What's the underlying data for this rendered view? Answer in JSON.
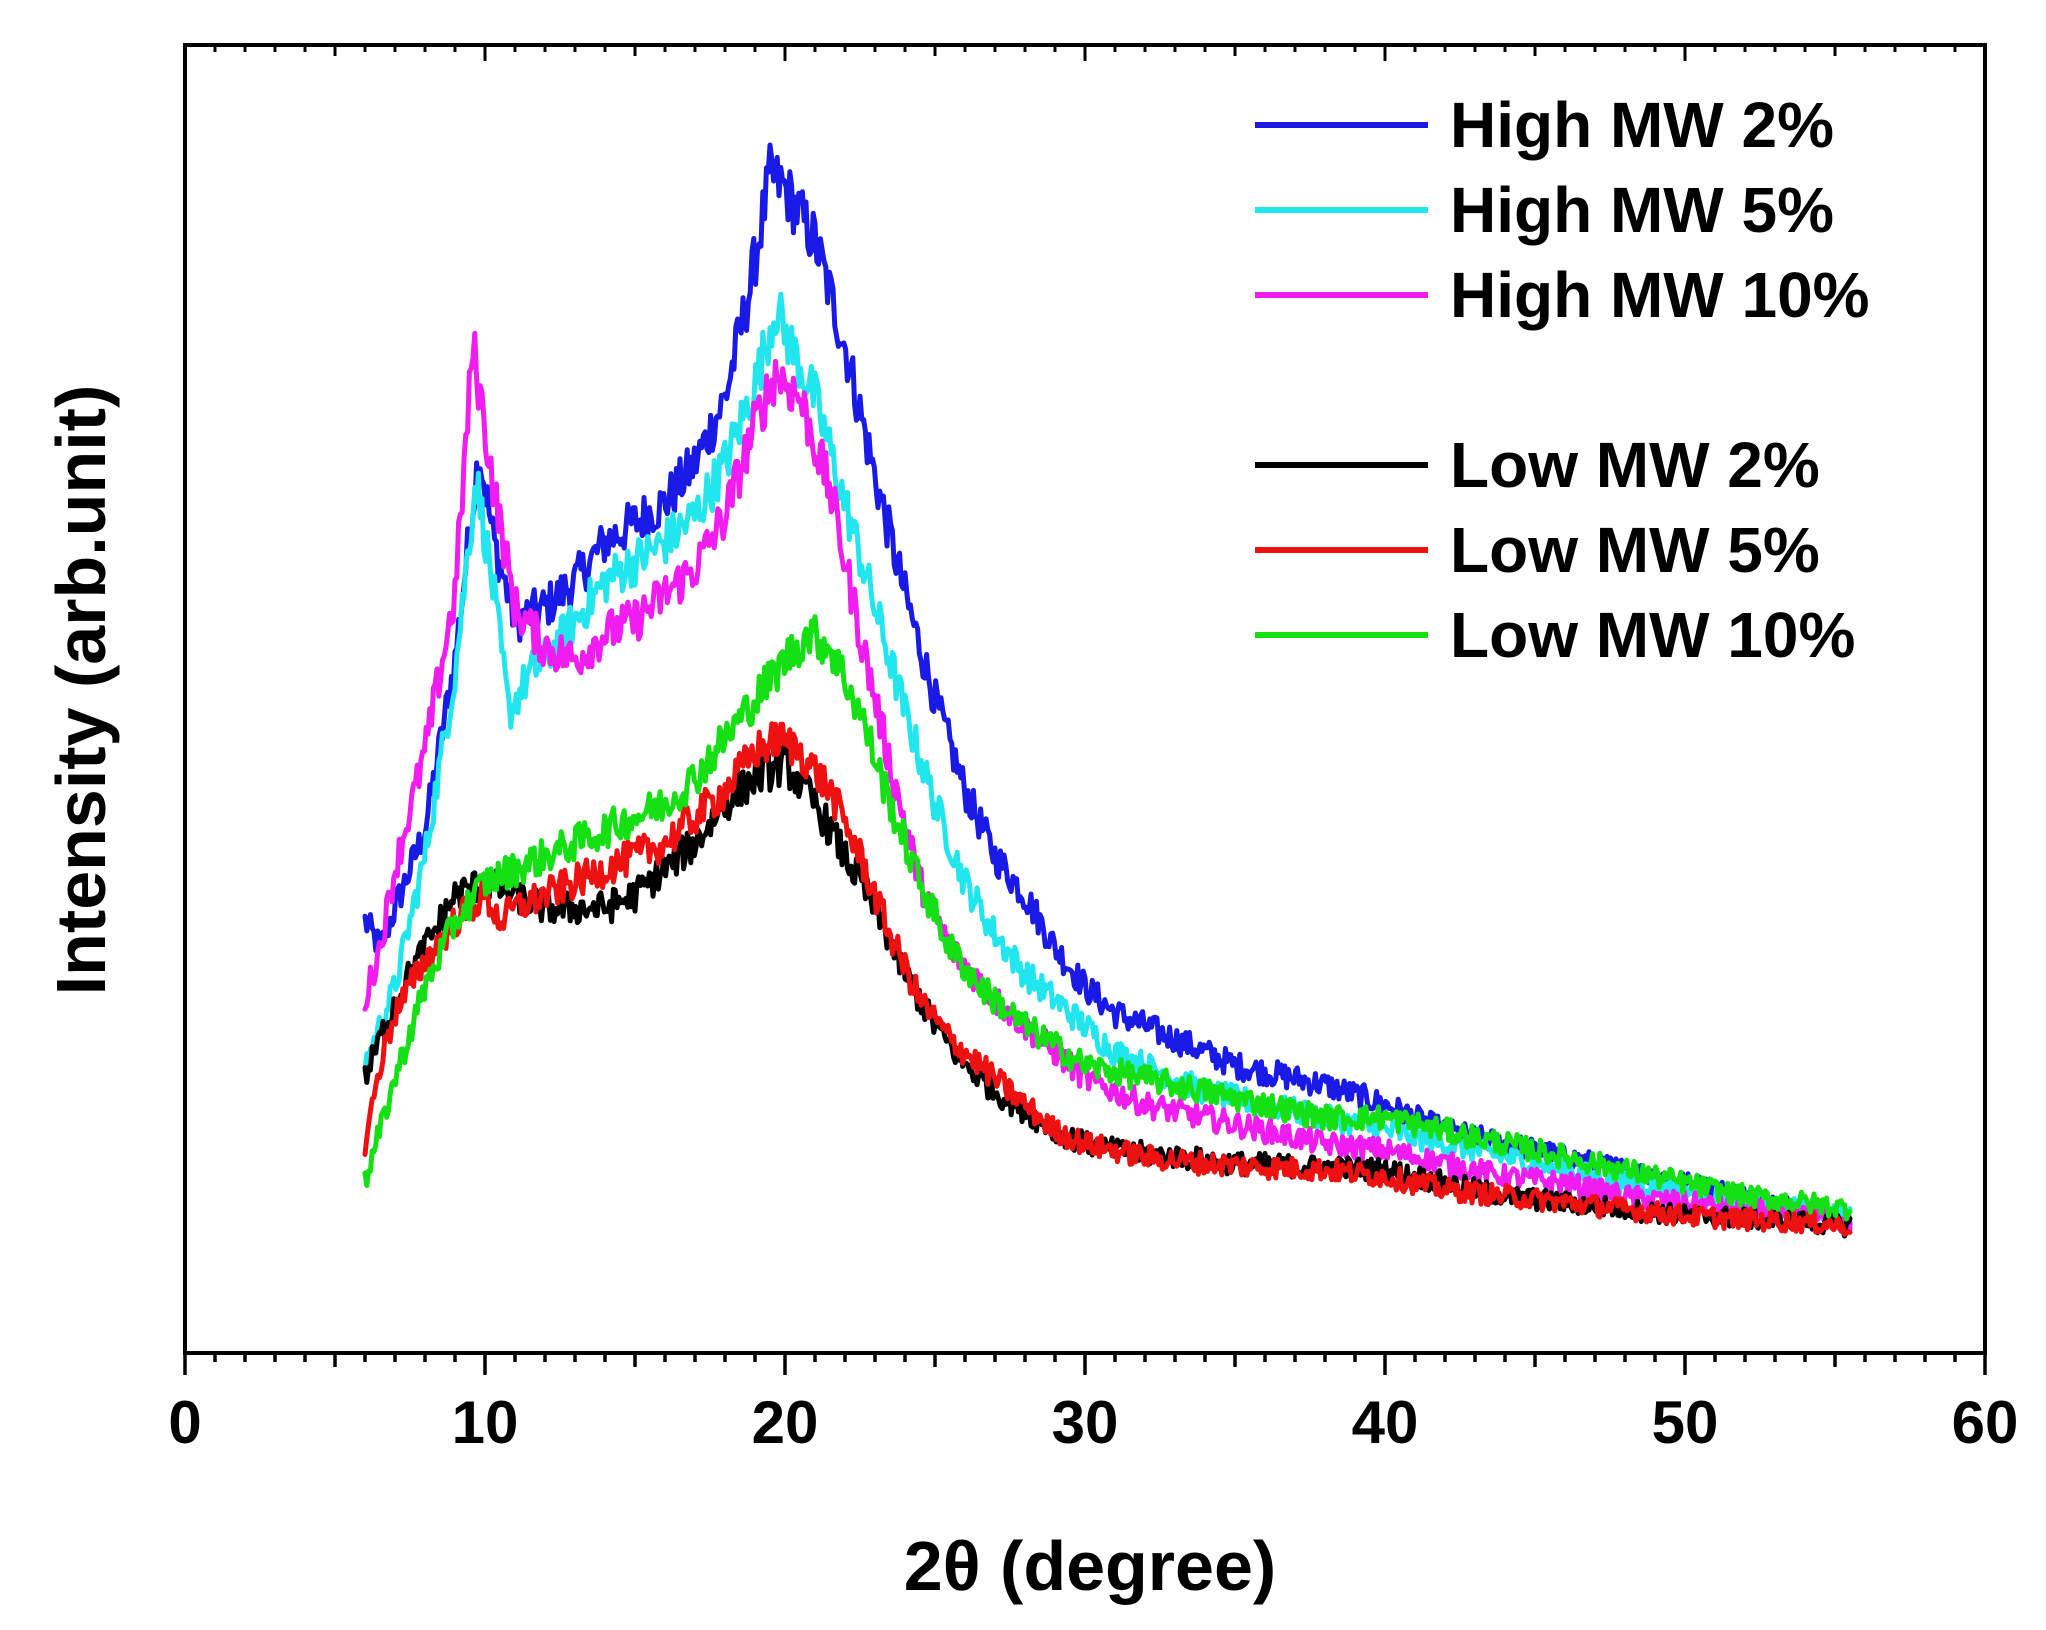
{
  "chart_data": {
    "type": "line",
    "title": "",
    "xlabel": "2θ (degree)",
    "ylabel": "Intensity (arb.unit)",
    "xlim": [
      0,
      60
    ],
    "ylim": [
      0,
      100
    ],
    "xticks": [
      0,
      10,
      20,
      30,
      40,
      50,
      60
    ],
    "xtick_labels": [
      "0",
      "10",
      "20",
      "30",
      "40",
      "50",
      "60"
    ],
    "y_tick_labels": "none",
    "grid": false,
    "legend_position": "top-right",
    "colors": {
      "High MW 2%": "#1a1ae6",
      "High MW 5%": "#22e6ee",
      "High MW 10%": "#f01cf0",
      "Low MW 2%": "#000000",
      "Low MW 5%": "#ee1111",
      "Low MW 10%": "#14e014"
    },
    "series": [
      {
        "name": "High MW 2%",
        "color": "#1a1ae6",
        "points": [
          [
            6,
            33
          ],
          [
            6.5,
            31
          ],
          [
            7,
            34
          ],
          [
            8,
            40
          ],
          [
            9,
            53
          ],
          [
            9.8,
            69
          ],
          [
            10.3,
            62
          ],
          [
            11,
            56
          ],
          [
            12,
            57
          ],
          [
            13,
            59
          ],
          [
            14,
            62
          ],
          [
            16,
            65
          ],
          [
            17,
            68
          ],
          [
            18,
            73
          ],
          [
            18.8,
            81
          ],
          [
            19.5,
            90
          ],
          [
            20,
            89
          ],
          [
            21,
            85
          ],
          [
            22,
            77
          ],
          [
            23,
            67
          ],
          [
            24,
            58
          ],
          [
            25,
            50
          ],
          [
            26,
            43
          ],
          [
            27,
            38
          ],
          [
            28,
            35
          ],
          [
            29,
            31
          ],
          [
            30,
            28
          ],
          [
            31,
            26
          ],
          [
            32,
            25
          ],
          [
            33,
            24
          ],
          [
            35,
            22
          ],
          [
            37,
            21
          ],
          [
            38,
            20.5
          ],
          [
            40,
            19
          ],
          [
            42,
            17
          ],
          [
            44,
            16
          ],
          [
            46,
            15
          ],
          [
            48,
            14
          ],
          [
            50,
            13
          ],
          [
            52,
            12
          ],
          [
            54,
            11
          ],
          [
            55.5,
            10
          ]
        ]
      },
      {
        "name": "High MW 5%",
        "color": "#22e6ee",
        "points": [
          [
            6,
            22
          ],
          [
            7,
            28
          ],
          [
            8,
            38
          ],
          [
            9,
            52
          ],
          [
            9.7,
            67
          ],
          [
            10.3,
            58
          ],
          [
            10.8,
            49
          ],
          [
            11.5,
            52
          ],
          [
            12,
            53
          ],
          [
            13,
            56
          ],
          [
            14,
            59
          ],
          [
            16,
            62
          ],
          [
            17,
            64
          ],
          [
            18,
            68
          ],
          [
            19,
            74
          ],
          [
            19.7,
            80
          ],
          [
            20,
            78
          ],
          [
            21,
            73
          ],
          [
            22,
            65
          ],
          [
            23,
            57
          ],
          [
            24,
            49
          ],
          [
            25,
            42
          ],
          [
            26,
            36
          ],
          [
            27,
            32
          ],
          [
            28,
            29
          ],
          [
            29,
            27
          ],
          [
            30,
            25
          ],
          [
            31,
            23
          ],
          [
            32,
            22
          ],
          [
            34,
            20
          ],
          [
            36,
            19
          ],
          [
            38,
            18
          ],
          [
            40,
            17
          ],
          [
            42,
            16
          ],
          [
            44,
            15
          ],
          [
            46,
            14
          ],
          [
            48,
            13
          ],
          [
            50,
            12.5
          ],
          [
            52,
            11.5
          ],
          [
            54,
            11
          ],
          [
            55.5,
            10.5
          ]
        ]
      },
      {
        "name": "High MW 10%",
        "color": "#f01cf0",
        "points": [
          [
            6,
            27
          ],
          [
            6.5,
            31
          ],
          [
            7,
            37
          ],
          [
            8,
            46
          ],
          [
            9,
            58
          ],
          [
            9.6,
            77
          ],
          [
            10.3,
            66
          ],
          [
            11,
            57
          ],
          [
            12,
            54
          ],
          [
            13,
            53
          ],
          [
            14,
            55
          ],
          [
            15,
            56
          ],
          [
            16,
            58
          ],
          [
            17,
            60
          ],
          [
            18,
            64
          ],
          [
            19,
            71
          ],
          [
            19.7,
            75
          ],
          [
            20.5,
            73
          ],
          [
            21.5,
            66
          ],
          [
            22.5,
            55
          ],
          [
            23.5,
            45
          ],
          [
            24.5,
            36
          ],
          [
            25.5,
            31
          ],
          [
            27,
            27
          ],
          [
            28,
            25
          ],
          [
            30,
            21
          ],
          [
            32,
            19
          ],
          [
            34,
            18
          ],
          [
            36,
            17
          ],
          [
            38,
            16
          ],
          [
            40,
            15.5
          ],
          [
            42,
            14.5
          ],
          [
            44,
            13.5
          ],
          [
            46,
            13
          ],
          [
            48,
            12
          ],
          [
            50,
            11.5
          ],
          [
            52,
            11
          ],
          [
            54,
            10.5
          ],
          [
            55.5,
            10
          ]
        ]
      },
      {
        "name": "Low MW 2%",
        "color": "#000000",
        "points": [
          [
            6,
            21
          ],
          [
            7,
            27
          ],
          [
            8,
            31
          ],
          [
            9,
            35
          ],
          [
            10,
            36
          ],
          [
            11,
            35
          ],
          [
            12,
            34
          ],
          [
            13,
            34
          ],
          [
            14,
            34
          ],
          [
            15,
            35
          ],
          [
            16,
            37
          ],
          [
            17,
            39
          ],
          [
            18,
            42
          ],
          [
            19,
            44
          ],
          [
            20,
            45
          ],
          [
            21,
            42
          ],
          [
            22,
            38
          ],
          [
            23,
            34
          ],
          [
            24,
            29
          ],
          [
            25,
            25
          ],
          [
            26,
            22
          ],
          [
            27,
            20
          ],
          [
            28,
            18.5
          ],
          [
            29,
            17
          ],
          [
            30,
            16
          ],
          [
            31,
            15.5
          ],
          [
            33,
            15
          ],
          [
            35,
            14.5
          ],
          [
            37,
            14.3
          ],
          [
            40,
            14
          ],
          [
            42,
            13
          ],
          [
            44,
            12
          ],
          [
            46,
            11.5
          ],
          [
            48,
            11
          ],
          [
            50,
            10.5
          ],
          [
            52,
            10.3
          ],
          [
            54,
            10
          ],
          [
            55.5,
            9.7
          ]
        ]
      },
      {
        "name": "Low MW 5%",
        "color": "#ee1111",
        "points": [
          [
            6,
            16
          ],
          [
            6.5,
            22
          ],
          [
            7,
            26
          ],
          [
            8,
            30
          ],
          [
            9,
            33
          ],
          [
            10,
            35
          ],
          [
            10.5,
            33
          ],
          [
            11,
            34
          ],
          [
            12,
            35
          ],
          [
            13,
            36
          ],
          [
            14,
            37
          ],
          [
            15,
            38
          ],
          [
            16,
            39
          ],
          [
            17,
            41
          ],
          [
            18,
            43
          ],
          [
            19,
            46
          ],
          [
            19.8,
            47
          ],
          [
            20.5,
            46
          ],
          [
            21.5,
            43
          ],
          [
            22.5,
            38
          ],
          [
            23.5,
            32
          ],
          [
            24.5,
            27
          ],
          [
            25.5,
            24
          ],
          [
            27,
            21
          ],
          [
            28,
            19
          ],
          [
            29,
            17
          ],
          [
            30,
            16
          ],
          [
            32,
            15
          ],
          [
            34,
            14.5
          ],
          [
            36,
            14.2
          ],
          [
            38,
            14
          ],
          [
            40,
            13.5
          ],
          [
            42,
            12.5
          ],
          [
            44,
            12
          ],
          [
            46,
            11.5
          ],
          [
            48,
            11
          ],
          [
            50,
            10.5
          ],
          [
            52,
            10.2
          ],
          [
            54,
            10
          ],
          [
            55.5,
            9.7
          ]
        ]
      },
      {
        "name": "Low MW 10%",
        "color": "#14e014",
        "points": [
          [
            6,
            13
          ],
          [
            7,
            21
          ],
          [
            8,
            28
          ],
          [
            9,
            33
          ],
          [
            10,
            36
          ],
          [
            11,
            37
          ],
          [
            12,
            38
          ],
          [
            13,
            39
          ],
          [
            14,
            40
          ],
          [
            15,
            41
          ],
          [
            16,
            42
          ],
          [
            17,
            44
          ],
          [
            18,
            47
          ],
          [
            19,
            50
          ],
          [
            20,
            53
          ],
          [
            20.8,
            55
          ],
          [
            21.5,
            54
          ],
          [
            22.5,
            49
          ],
          [
            23.5,
            42
          ],
          [
            24.5,
            36
          ],
          [
            25.5,
            31
          ],
          [
            26.5,
            28
          ],
          [
            28,
            25
          ],
          [
            30,
            22
          ],
          [
            32,
            21
          ],
          [
            34,
            20
          ],
          [
            36,
            19
          ],
          [
            38,
            18
          ],
          [
            40,
            18
          ],
          [
            42,
            17
          ],
          [
            44,
            16
          ],
          [
            46,
            15
          ],
          [
            48,
            14
          ],
          [
            50,
            13
          ],
          [
            52,
            12
          ],
          [
            54,
            11.5
          ],
          [
            55.5,
            11
          ]
        ]
      }
    ]
  }
}
